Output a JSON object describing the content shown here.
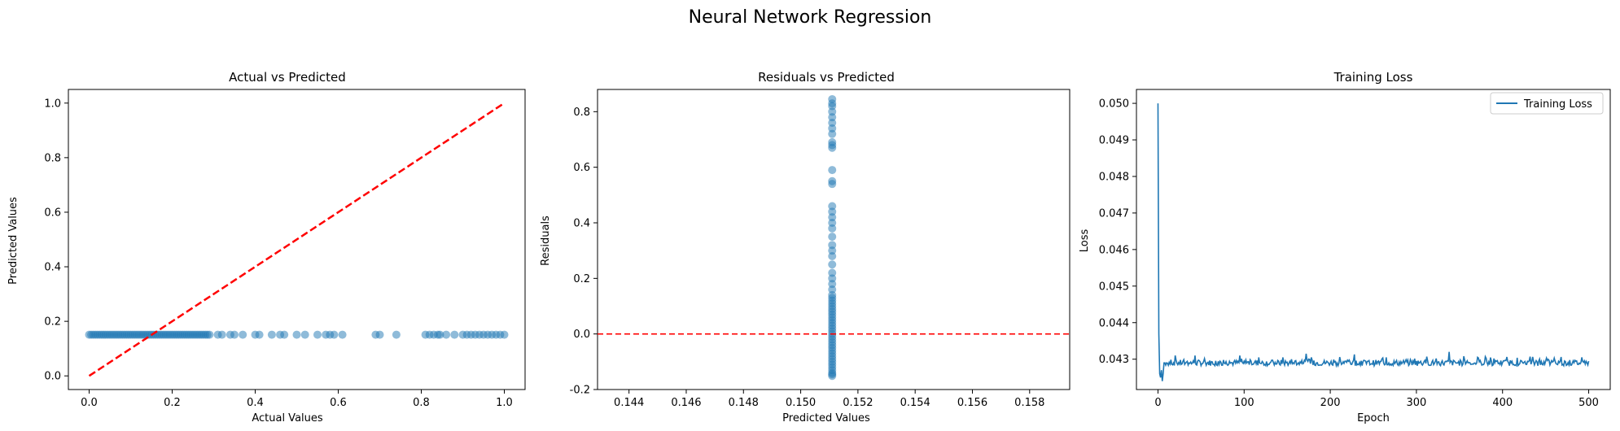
{
  "figure": {
    "title": "Neural Network Regression"
  },
  "chart_data": [
    {
      "type": "scatter",
      "title": "Actual vs Predicted",
      "xlabel": "Actual Values",
      "ylabel": "Predicted Values",
      "xlim": [
        -0.05,
        1.05
      ],
      "ylim": [
        -0.05,
        1.05
      ],
      "xticks": [
        "0.0",
        "0.2",
        "0.4",
        "0.6",
        "0.8",
        "1.0"
      ],
      "yticks": [
        "0.0",
        "0.2",
        "0.4",
        "0.6",
        "0.8",
        "1.0"
      ],
      "grid": false,
      "point_color": "#1f77b4",
      "line_color": "#ff0000",
      "points": {
        "x": [
          0.0,
          0.005,
          0.01,
          0.015,
          0.02,
          0.025,
          0.03,
          0.035,
          0.04,
          0.045,
          0.05,
          0.055,
          0.06,
          0.065,
          0.07,
          0.075,
          0.08,
          0.085,
          0.09,
          0.095,
          0.1,
          0.105,
          0.11,
          0.115,
          0.12,
          0.125,
          0.13,
          0.135,
          0.14,
          0.145,
          0.15,
          0.155,
          0.16,
          0.165,
          0.17,
          0.175,
          0.18,
          0.185,
          0.19,
          0.195,
          0.2,
          0.205,
          0.21,
          0.215,
          0.22,
          0.225,
          0.23,
          0.235,
          0.24,
          0.245,
          0.25,
          0.255,
          0.26,
          0.265,
          0.27,
          0.275,
          0.28,
          0.285,
          0.29,
          0.31,
          0.32,
          0.34,
          0.35,
          0.37,
          0.4,
          0.41,
          0.44,
          0.46,
          0.47,
          0.5,
          0.52,
          0.55,
          0.57,
          0.58,
          0.59,
          0.61,
          0.69,
          0.7,
          0.74,
          0.81,
          0.82,
          0.83,
          0.84,
          0.845,
          0.86,
          0.88,
          0.9,
          0.91,
          0.92,
          0.93,
          0.94,
          0.95,
          0.96,
          0.97,
          0.98,
          0.99,
          1.0
        ],
        "y": [
          0.151,
          0.151,
          0.151,
          0.151,
          0.151,
          0.151,
          0.151,
          0.151,
          0.151,
          0.151,
          0.151,
          0.151,
          0.151,
          0.151,
          0.151,
          0.151,
          0.151,
          0.151,
          0.151,
          0.151,
          0.151,
          0.151,
          0.151,
          0.151,
          0.151,
          0.151,
          0.151,
          0.151,
          0.151,
          0.151,
          0.151,
          0.151,
          0.151,
          0.151,
          0.151,
          0.151,
          0.151,
          0.151,
          0.151,
          0.151,
          0.151,
          0.151,
          0.151,
          0.151,
          0.151,
          0.151,
          0.151,
          0.151,
          0.151,
          0.151,
          0.151,
          0.151,
          0.151,
          0.151,
          0.151,
          0.151,
          0.151,
          0.151,
          0.151,
          0.151,
          0.151,
          0.151,
          0.151,
          0.151,
          0.151,
          0.151,
          0.151,
          0.151,
          0.151,
          0.151,
          0.151,
          0.151,
          0.151,
          0.151,
          0.151,
          0.151,
          0.151,
          0.151,
          0.151,
          0.151,
          0.151,
          0.151,
          0.151,
          0.151,
          0.151,
          0.151,
          0.151,
          0.151,
          0.151,
          0.151,
          0.151,
          0.151,
          0.151,
          0.151,
          0.151,
          0.151,
          0.151
        ]
      },
      "reference_line": {
        "x": [
          0,
          1
        ],
        "y": [
          0,
          1
        ],
        "style": "dashed"
      }
    },
    {
      "type": "scatter",
      "title": "Residuals vs Predicted",
      "xlabel": "Predicted Values",
      "ylabel": "Residuals",
      "xlim": [
        0.1429,
        0.1594
      ],
      "ylim": [
        -0.2,
        0.88
      ],
      "xticks": [
        "0.144",
        "0.146",
        "0.148",
        "0.150",
        "0.152",
        "0.154",
        "0.156",
        "0.158"
      ],
      "yticks": [
        "-0.2",
        "0.0",
        "0.2",
        "0.4",
        "0.6",
        "0.8"
      ],
      "grid": false,
      "point_color": "#1f77b4",
      "line_color": "#ff0000",
      "points": {
        "x_constant": 0.1511,
        "y": [
          -0.151,
          -0.145,
          -0.14,
          -0.13,
          -0.12,
          -0.11,
          -0.1,
          -0.09,
          -0.08,
          -0.07,
          -0.06,
          -0.05,
          -0.04,
          -0.03,
          -0.02,
          -0.01,
          0.0,
          0.01,
          0.02,
          0.03,
          0.04,
          0.05,
          0.06,
          0.07,
          0.08,
          0.09,
          0.1,
          0.11,
          0.12,
          0.13,
          0.14,
          0.16,
          0.18,
          0.2,
          0.22,
          0.25,
          0.28,
          0.3,
          0.32,
          0.35,
          0.38,
          0.4,
          0.42,
          0.44,
          0.46,
          0.54,
          0.55,
          0.59,
          0.67,
          0.68,
          0.69,
          0.72,
          0.74,
          0.76,
          0.78,
          0.8,
          0.82,
          0.83,
          0.845
        ]
      },
      "reference_line": {
        "y": 0.0,
        "style": "dashed"
      }
    },
    {
      "type": "line",
      "title": "Training Loss",
      "xlabel": "Epoch",
      "ylabel": "Loss",
      "xlim": [
        -25,
        525
      ],
      "ylim": [
        0.04217,
        0.05038
      ],
      "xticks": [
        "0",
        "100",
        "200",
        "300",
        "400",
        "500"
      ],
      "yticks": [
        "0.043",
        "0.044",
        "0.045",
        "0.046",
        "0.047",
        "0.048",
        "0.049",
        "0.050"
      ],
      "legend": {
        "placement": "top-right",
        "entries": [
          "Training Loss"
        ]
      },
      "grid": false,
      "series": [
        {
          "name": "Training Loss",
          "color": "#1f77b4",
          "epochs": 500,
          "key_points": [
            [
              0,
              0.05
            ],
            [
              1,
              0.0437
            ],
            [
              2,
              0.0426
            ],
            [
              3,
              0.0425
            ],
            [
              4,
              0.0427
            ],
            [
              5,
              0.0424
            ],
            [
              6,
              0.0426
            ],
            [
              8,
              0.0429
            ],
            [
              10,
              0.0429
            ]
          ],
          "plateau": 0.0429,
          "spikes": [
            [
              20,
              0.0431
            ],
            [
              43,
              0.0431
            ],
            [
              95,
              0.0431
            ],
            [
              117,
              0.04305
            ],
            [
              145,
              0.04305
            ],
            [
              172,
              0.04315
            ],
            [
              178,
              0.04305
            ],
            [
              228,
              0.04313
            ],
            [
              265,
              0.04305
            ],
            [
              312,
              0.04307
            ],
            [
              338,
              0.0432
            ],
            [
              355,
              0.04308
            ],
            [
              380,
              0.04307
            ],
            [
              405,
              0.04306
            ],
            [
              432,
              0.04307
            ],
            [
              468,
              0.04306
            ],
            [
              492,
              0.04305
            ]
          ]
        }
      ]
    }
  ]
}
